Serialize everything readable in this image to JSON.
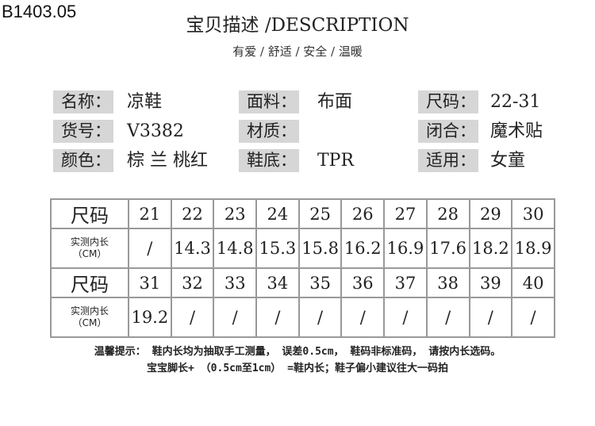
{
  "product_code": "B1403.05",
  "title": "宝贝描述 /DESCRIPTION",
  "subtitle": "有爱 / 舒适 / 安全 / 温暖",
  "specs": [
    {
      "label": "名称：",
      "value": "凉鞋"
    },
    {
      "label": "面料：",
      "value": "布面"
    },
    {
      "label": "尺码：",
      "value": "22-31"
    },
    {
      "label": "货号：",
      "value": "V3382"
    },
    {
      "label": "材质：",
      "value": ""
    },
    {
      "label": "闭合：",
      "value": "魔术贴"
    },
    {
      "label": "颜色：",
      "value": "棕 兰 桃红"
    },
    {
      "label": "鞋底：",
      "value": "TPR"
    },
    {
      "label": "适用：",
      "value": "女童"
    }
  ],
  "size_table": {
    "size_header": "尺码",
    "length_header_line1": "实测内长",
    "length_header_line2": "（CM）",
    "rows": [
      {
        "sizes": [
          "21",
          "22",
          "23",
          "24",
          "25",
          "26",
          "27",
          "28",
          "29",
          "30"
        ],
        "lengths": [
          "/",
          "14.3",
          "14.8",
          "15.3",
          "15.8",
          "16.2",
          "16.9",
          "17.6",
          "18.2",
          "18.9"
        ]
      },
      {
        "sizes": [
          "31",
          "32",
          "33",
          "34",
          "35",
          "36",
          "37",
          "38",
          "39",
          "40"
        ],
        "lengths": [
          "19.2",
          "/",
          "/",
          "/",
          "/",
          "/",
          "/",
          "/",
          "/",
          "/"
        ]
      }
    ]
  },
  "notes": [
    "温馨提示： 鞋内长均为抽取手工测量， 误差0.5cm， 鞋码非标准码， 请按内长选码。",
    "宝宝脚长+ （0.5cm至1cm） =鞋内长；鞋子偏小建议往大一码拍"
  ]
}
